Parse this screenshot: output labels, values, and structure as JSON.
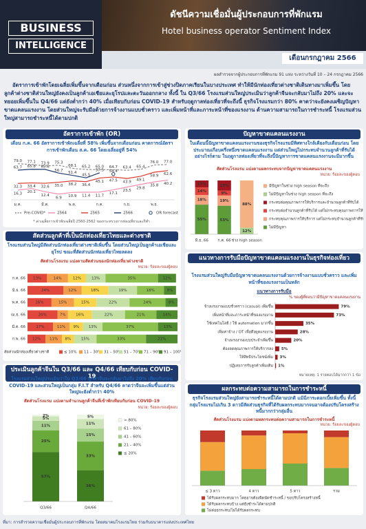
{
  "header": {
    "logo": [
      "BUSINESS",
      "INTELLIGENCE"
    ],
    "title_th": "ดัชนีความเชื่อมั่นผู้ประกอบการที่พักแรม",
    "title_en": "Hotel business operator Sentiment Index",
    "month": "เดือนกรกฎาคม 2566",
    "survey": "ผลสำรวจจากผู้ประกอบการที่พักแรม 91 แห่ง ระหว่างวันที่ 10 – 24 กรกฎาคม 2566"
  },
  "intro": "อัตราการเข้าพักโดยเฉลี่ยเพิ่มขึ้นจากเดือนก่อน ส่วนหนึ่งจากการเข้าสู่ช่วงปิดภาคเรียนในบางประเทศ ทำให้มีนักท่องเที่ยวต่างชาติเดินทางมาเพิ่มขึ้น โดยลูกค้าต่างชาติส่วนใหญ่ยังคงเป็นลูกค้าเอเชียและยุโรปและตะวันออกกลาง ทั้งนี้ ใน Q3/66 โรงแรมส่วนใหญ่ประเมินว่าลูกค้าจีนจะกลับมาไม่ถึง 20% และจะทยอยเพิ่มขึ้นใน Q4/66 แต่ยังต่ำกว่า 40% เมื่อเทียบกับก่อน COVID-19 สำหรับฤดูกาลท่องเที่ยวที่จะถึงนี้ ธุรกิจโรงแรมกว่า 80% คาดว่าจะยังคงเผชิญปัญหาขาดแคลนแรงงาน โดยส่วนใหญ่จะรับมือด้วยการจ้างงานแบบชั่วคราว และเพิ่มหน้าที่และภาระหน้าที่ของแรงงาน ด้านความสามารถในการชำระหนี้ โรงแรมส่วนใหญ่สามารถชำระหนี้ได้ตามปกติ",
  "chart_data": [
    {
      "type": "line",
      "heading": "อัตราการเข้าพัก (OR)",
      "summary": "เดือน ก.ค. 66 อัตราการเข้าพักเฉลี่ยที่ 58% เพิ่มขึ้นจากเดือนก่อน คาดการณ์อัตราการเข้าพักเดือน ส.ค. 66 โดยเฉลี่ยอยู่ที่ 54%",
      "categories": [
        "ม.ค.",
        null,
        "มี.ค.",
        null,
        "พ.ค.",
        null,
        "ก.ค.",
        null,
        "ก.ย.",
        null,
        "พ.ย.",
        null
      ],
      "ylim": [
        0,
        85
      ],
      "legend": "bottom",
      "series": [
        {
          "name": "Pre-COVID*",
          "color": "#8c8c8c",
          "dash": true,
          "label_position": "above",
          "values": [
            79,
            77.1,
            73.9,
            75.3,
            68.1,
            65.2,
            65,
            64.7,
            63.4,
            65.4,
            76,
            77
          ],
          "value_labels": [
            "79.0",
            "77.1",
            "73.9",
            "75.3",
            "68.1",
            "65.2",
            "65.0",
            "64.7",
            "63.4",
            "65.4",
            "76.0",
            "77.0"
          ]
        },
        {
          "name": "2564",
          "color": "#f08fb0",
          "label_position": "below",
          "values": [
            16.3,
            20.1,
            12.4,
            6.9,
            10.9,
            11.4,
            11.7,
            17.1,
            23.5,
            29.8,
            35.8,
            40.2
          ],
          "value_labels": [
            "16.3",
            "20.1",
            "12.4",
            "6.9",
            "10.9",
            "11.4",
            "11.7",
            "17.1",
            "23.5",
            "29.8",
            "35.8",
            "40.2"
          ]
        },
        {
          "name": "2565",
          "color": "#d9392f",
          "label_position": "below",
          "values": [
            32.3,
            33.4,
            32.6,
            35,
            38.2,
            36.4,
            45.1,
            47.5,
            43.9,
            49.1,
            58.9,
            62.6
          ],
          "value_labels": [
            "32.3",
            "33.4",
            "32.6",
            "35.0",
            "38.2",
            "36.4",
            "45.1",
            "47.5",
            "43.9",
            "49.1",
            "58.9",
            "62.6"
          ]
        },
        {
          "name": "2566",
          "color": "#1f3a6e",
          "label_position": "above",
          "values": [
            63.7,
            65.8,
            65.6,
            56.7,
            51.4,
            45.5,
            57.5,
            null,
            null,
            null,
            null,
            null
          ],
          "value_labels": [
            "63.7",
            "65.8",
            "65.6",
            "56.7",
            "51.4",
            "45.5",
            "57.5",
            null,
            null,
            null,
            null,
            null
          ]
        },
        {
          "name": "OR forecast",
          "color": "#1f3a6e",
          "marker": "circle",
          "label_position": "above",
          "values": [
            null,
            null,
            null,
            null,
            null,
            null,
            null,
            54.4,
            null,
            null,
            null,
            null
          ],
          "value_labels": [
            null,
            null,
            null,
            null,
            null,
            null,
            null,
            "54.4",
            null,
            null,
            null,
            null
          ]
        }
      ],
      "note": "* ค่าเฉลี่ยการเข้าพักเฉลี่ยปี 2560-2562 ของกระทรวงการท่องเที่ยวและกีฬา"
    },
    {
      "type": "stacked_bar",
      "heading": "ปัญหาขาดแคลนแรงงาน",
      "summary": "ในเดือนนี้ปัญหาขาดแคลนแรงงานของธุรกิจโรงแรมมีทิศทางใกล้เคียงกับเดือนก่อน โดยประมาณเกือบครึ่งหนึ่งขาดแคลนแรงงาน แต่ส่วนใหญ่ไม่กระทบจำนวนลูกค้าที่รับได้ อย่างไรก็ตาม ในฤดูกาลท่องเที่ยวที่จะถึงนี้ปัญหาการขาดแคลนแรงงานจะมีมากขึ้น",
      "title": "สัดส่วนโรงแรม แบ่งตามผลกระทบจากปัญหาขาดแคลนแรงงาน",
      "unit": "หน่วย: ร้อยละของผู้ตอบ",
      "categories": [
        "มิ.ย. 66",
        "ก.ค. 66",
        "ช่วง high season"
      ],
      "ylim": [
        0,
        100
      ],
      "legend": "right",
      "series": [
        {
          "name": "ไม่มีปัญหา",
          "color": "#5e9c3a",
          "values": [
            55,
            53,
            null
          ],
          "value_labels": [
            "55%",
            "53%",
            null
          ]
        },
        {
          "name": "กระทบคุณภาพการให้บริการ แต่ไม่กระทบจำนวนลูกค้าที่รับได้",
          "color": "#f4a582",
          "values": [
            18,
            19,
            null
          ],
          "value_labels": [
            "18%",
            "19%",
            null
          ]
        },
        {
          "name": "กระทบต่อจำนวนลูกค้าที่รับได้ แต่ไม่กระทบคุณภาพการให้บริการ",
          "color": "#e0443c",
          "values": [
            14,
            9,
            null
          ],
          "value_labels": [
            "14%",
            "9%",
            null
          ]
        },
        {
          "name": "กระทบต่อคุณภาพการให้บริการและจำนวนลูกค้าที่รับได้",
          "color": "#a3161f",
          "values": [
            13,
            19,
            null
          ],
          "value_labels": [
            "13%",
            "19%",
            null
          ]
        },
        {
          "name": "ไม่มีปัญหาในช่วง high season ที่จะถึง",
          "color": "#a9d18e",
          "values": [
            null,
            null,
            12
          ],
          "value_labels": [
            null,
            null,
            "12%"
          ]
        },
        {
          "name": "มีปัญหาในช่วง high season ที่จะถึง",
          "color": "#f4b183",
          "values": [
            null,
            null,
            88
          ],
          "value_labels": [
            null,
            null,
            "88%"
          ]
        }
      ]
    },
    {
      "type": "stacked_barh",
      "heading": "สัดส่วนลูกค้าที่เป็นนักท่องเที่ยวไทยและต่างชาติ",
      "summary": "โรงแรมส่วนใหญ่มีสัดส่วนนักท่องเที่ยวต่างชาติเพิ่มขึ้น โดยส่วนใหญ่เป็นลูกค้าเอเชียและยุโรป ขณะที่สัดส่วนนักท่องเที่ยวไทยลดลง",
      "title": "สัดส่วนโรงแรม แบ่งตามสัดส่วนของนักท่องเที่ยวต่างชาติ",
      "unit": "หน่วย: ร้อยละของผู้ตอบ",
      "categories": [
        "ก.ค. 66",
        "มิ.ย. 66",
        "พ.ค. 66",
        "เม.ย. 66",
        "มี.ค. 66",
        "ก.พ. 66"
      ],
      "xlim": [
        0,
        100
      ],
      "legend": "bottom",
      "legend_title": "สัดส่วนนักท่องเที่ยวต่างชาติ",
      "series": [
        {
          "name": "≤ 10%",
          "color": "#e2473b",
          "values": [
            13,
            24,
            16,
            20,
            17,
            12
          ],
          "value_labels": [
            "13%",
            "24%",
            "16%",
            "20%",
            "17%",
            "12%"
          ]
        },
        {
          "name": "11 – 30%",
          "color": "#f39c4a",
          "values": [
            14,
            12,
            15,
            7,
            11,
            11
          ],
          "value_labels": [
            "14%",
            "12%",
            "15%",
            "7%",
            "11%",
            "11%"
          ]
        },
        {
          "name": "31 – 50%",
          "color": "#f7d44c",
          "values": [
            12,
            18,
            15,
            16,
            9,
            8
          ],
          "value_labels": [
            "12%",
            "18%",
            "15%",
            "16%",
            "9%",
            "8%"
          ]
        },
        {
          "name": "51 – 70%",
          "color": "#c5e0a5",
          "values": [
            13,
            19,
            22,
            22,
            13,
            15
          ],
          "value_labels": [
            "13%",
            "19%",
            "22%",
            "22%",
            "13%",
            "15%"
          ]
        },
        {
          "name": "71 – 90%",
          "color": "#8cc04f",
          "values": [
            35,
            18,
            24,
            21,
            37,
            33
          ],
          "value_labels": [
            "35%",
            "18%",
            "24%",
            "21%",
            "37%",
            "33%"
          ]
        },
        {
          "name": "91 – 100%",
          "color": "#4e8a2e",
          "values": [
            12,
            8,
            8,
            14,
            13,
            21
          ],
          "value_labels": [
            "12%",
            "8%",
            "8%",
            "14%",
            "13%",
            "21%"
          ]
        }
      ]
    },
    {
      "type": "stacked_bar",
      "heading": "ประเมินลูกค้าจีนใน Q3/66 และ Q4/66 เทียบกับก่อน COVID-19",
      "summary": "โรงแรมส่วนใหญ่ประเมินว่าใน Q3/66 ลูกค้าจีนจะกลับมาไม่ถึง 20% เทียบกับก่อน COVID-19 และส่วนใหญ่เป็นกลุ่ม F.I.T สำหรับ Q4/66 คาดว่าจีนจะเพิ่มขึ้นแต่ส่วนใหญ่จะยังต่ำกว่า 40%",
      "title": "สัดส่วนโรงแรม แบ่งตามจำนวนลูกค้าจีนที่เข้าพักเทียบกับก่อน COVID-19",
      "unit": "หน่วย: ร้อยละของผู้ตอบ",
      "categories": [
        "Q3/66",
        "Q4/66"
      ],
      "ylim": [
        0,
        100
      ],
      "legend": "right",
      "series": [
        {
          "name": "≤ 20%",
          "color": "#3f7d20",
          "values": [
            57,
            36
          ],
          "value_labels": [
            "57%",
            "36%"
          ]
        },
        {
          "name": "21 – 40%",
          "color": "#6aaa3a",
          "values": [
            25,
            33
          ],
          "value_labels": [
            "25%",
            "33%"
          ]
        },
        {
          "name": "41 – 60%",
          "color": "#a9d18e",
          "values": [
            11,
            15
          ],
          "value_labels": [
            "11%",
            "15%"
          ]
        },
        {
          "name": "61 – 80%",
          "color": "#cde5b8",
          "values": [
            5,
            11
          ],
          "value_labels": [
            "5%",
            "11%"
          ]
        },
        {
          "name": "> 80%",
          "color": "#eef6e6",
          "values": [
            2,
            5
          ],
          "value_labels": [
            "2%",
            "5%"
          ]
        }
      ]
    },
    {
      "type": "barh",
      "heading": "แนวทางการรับมือปัญหาขาดแคลนแรงงานในธุรกิจท่องเที่ยว",
      "summary": "โรงแรมส่วนใหญ่รับมือปัญหาขาดแคลนแรงงานด้วยการจ้างงานแบบชั่วคราว และเพิ่มหน้าที่ของแรงงานเป็นหลัก",
      "title": "แนวทางการรับมือ",
      "axis_label": "% ของผู้ที่ตอบว่ามีปัญหาขาดแคลนแรงงาน",
      "categories": [
        "จ้างแรงงานแบบชั่วคราว (casual) เพิ่มขึ้น",
        "เพิ่มหน้าที่และภาระหน้าที่ของแรงงาน",
        "ใช้เทคโนโลยี / ใช้ automation มากขึ้น",
        "เพิ่มค่าจ้าง / OT เพื่อดึงดูดแรงงาน",
        "จ้างแรงงานแบบประจำเพิ่มขึ้น",
        "ต้องลดคุณภาพการให้บริการลง",
        "ให้สิทธิประโยชน์เพิ่ม",
        "ปฏิเสธการรับลูกค้าเพิ่มเติม"
      ],
      "values": [
        79,
        73,
        35,
        28,
        20,
        5,
        3,
        1
      ],
      "value_labels": [
        "79%",
        "73%",
        "35%",
        "28%",
        "20%",
        "5%",
        "3%",
        "1%"
      ],
      "color": "#9b1c1c",
      "xlim": [
        0,
        100
      ],
      "note": "หมายเหตุ: 1 รายตอบได้มากกว่า 1 ข้อ"
    },
    {
      "type": "stacked_bar",
      "heading": "ผลกระทบต่อความสามารถในการชำระหนี้",
      "summary": "ธุรกิจโรงแรมส่วนใหญ่ยังสามารถชำระหนี้ได้ตามปกติ แม้มีภาระดอกเบี้ยเพิ่มขึ้น ทั้งนี้ กลุ่มโรงแรมไม่เกิน 3 ดาวมีสัดส่วนธุรกิจที่ได้รับผลกระทบมากจนอาจต้องปรับโครงสร้างหนี้มากกว่ากลุ่มอื่น",
      "title": "สัดส่วนโรงแรม แบ่งตามผลกระทบต่อความสามารถในการชำระหนี้",
      "unit": "หน่วย: ร้อยละของผู้ตอบ",
      "categories": [
        "≤ 3 ดาว",
        "4 ดาว",
        "5 ดาว",
        "รวม"
      ],
      "ylim": [
        0,
        100
      ],
      "legend": "bottom",
      "series": [
        {
          "name": "ไม่ค่อยกระทบ/ไม่ได้รับผลกระทบ",
          "color": "#70ad47",
          "values": [
            27,
            30,
            40,
            32
          ]
        },
        {
          "name": "ได้รับผลกระทบบ้าง แต่ยังชำระได้ตามปกติ",
          "color": "#f4a23c",
          "values": [
            52,
            61,
            55,
            56
          ]
        },
        {
          "name": "ได้รับผลกระทบมาก โดยอาจต้องผิดนัดชำระหนี้ / ขอปรับโครงสร้างหนี้",
          "color": "#c0392b",
          "values": [
            21,
            9,
            5,
            12
          ]
        }
      ]
    }
  ],
  "footer": "ที่มา: การสำรวจความเชื่อมั่นผู้ประกอบการที่พักแรม โดยสมาคมโรงแรมไทย ร่วมกับธนาคารแห่งประเทศไทย"
}
